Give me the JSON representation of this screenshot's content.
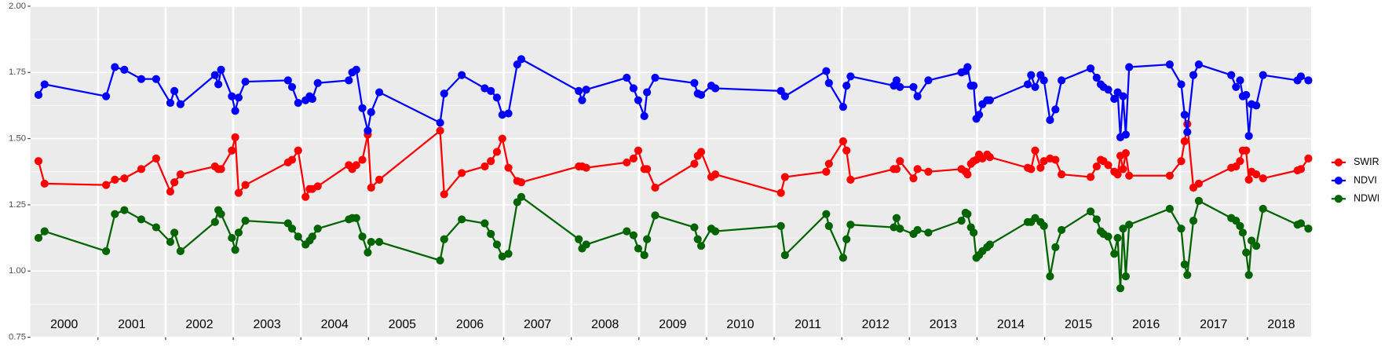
{
  "chart_data": {
    "type": "line",
    "x": [
      2000.12,
      2000.21,
      2001.12,
      2001.25,
      2001.39,
      2001.64,
      2001.86,
      2002.07,
      2002.13,
      2002.22,
      2002.73,
      2002.78,
      2002.82,
      2002.98,
      2003.03,
      2003.08,
      2003.18,
      2003.81,
      2003.87,
      2003.96,
      2004.07,
      2004.13,
      2004.17,
      2004.25,
      2004.71,
      2004.76,
      2004.82,
      2004.91,
      2004.99,
      2005.04,
      2005.16,
      2006.06,
      2006.12,
      2006.38,
      2006.72,
      2006.81,
      2006.9,
      2006.98,
      2007.07,
      2007.2,
      2007.26,
      2008.11,
      2008.16,
      2008.22,
      2008.82,
      2008.92,
      2008.99,
      2009.08,
      2009.12,
      2009.24,
      2009.82,
      2009.87,
      2009.92,
      2010.07,
      2010.13,
      2011.1,
      2011.16,
      2011.77,
      2011.81,
      2012.02,
      2012.07,
      2012.13,
      2012.77,
      2012.81,
      2012.86,
      2013.06,
      2013.12,
      2013.28,
      2013.77,
      2013.83,
      2013.86,
      2013.91,
      2013.95,
      2013.99,
      2014.03,
      2014.08,
      2014.15,
      2014.19,
      2014.75,
      2014.8,
      2014.86,
      2014.94,
      2014.99,
      2015.08,
      2015.16,
      2015.25,
      2015.68,
      2015.77,
      2015.83,
      2015.87,
      2015.94,
      2016.03,
      2016.08,
      2016.12,
      2016.16,
      2016.2,
      2016.25,
      2016.85,
      2017.02,
      2017.07,
      2017.11,
      2017.2,
      2017.28,
      2017.76,
      2017.83,
      2017.89,
      2017.93,
      2017.98,
      2018.02,
      2018.06,
      2018.13,
      2018.23,
      2018.74,
      2018.79,
      2018.9
    ],
    "series": [
      {
        "name": "SWIR",
        "color": "#ff0000",
        "values": [
          1.415,
          1.33,
          1.325,
          1.345,
          1.35,
          1.385,
          1.425,
          1.3,
          1.335,
          1.365,
          1.395,
          1.385,
          1.385,
          1.455,
          1.505,
          1.295,
          1.325,
          1.41,
          1.42,
          1.455,
          1.28,
          1.31,
          1.31,
          1.32,
          1.4,
          1.385,
          1.4,
          1.42,
          1.515,
          1.315,
          1.345,
          1.53,
          1.29,
          1.37,
          1.395,
          1.415,
          1.45,
          1.5,
          1.39,
          1.34,
          1.335,
          1.395,
          1.395,
          1.39,
          1.41,
          1.425,
          1.455,
          1.385,
          1.385,
          1.315,
          1.405,
          1.435,
          1.45,
          1.355,
          1.365,
          1.295,
          1.355,
          1.375,
          1.405,
          1.49,
          1.455,
          1.345,
          1.385,
          1.385,
          1.415,
          1.35,
          1.385,
          1.375,
          1.385,
          1.375,
          1.365,
          1.405,
          1.415,
          1.42,
          1.44,
          1.425,
          1.44,
          1.43,
          1.39,
          1.385,
          1.455,
          1.39,
          1.415,
          1.425,
          1.42,
          1.365,
          1.355,
          1.395,
          1.42,
          1.415,
          1.4,
          1.375,
          1.365,
          1.435,
          1.385,
          1.445,
          1.36,
          1.36,
          1.415,
          1.49,
          1.555,
          1.315,
          1.33,
          1.39,
          1.395,
          1.415,
          1.455,
          1.455,
          1.345,
          1.375,
          1.365,
          1.35,
          1.38,
          1.385,
          1.425
        ]
      },
      {
        "name": "NDVI",
        "color": "#0000ff",
        "values": [
          1.665,
          1.705,
          1.66,
          1.77,
          1.76,
          1.725,
          1.725,
          1.635,
          1.68,
          1.63,
          1.74,
          1.705,
          1.76,
          1.66,
          1.605,
          1.655,
          1.715,
          1.72,
          1.695,
          1.635,
          1.645,
          1.66,
          1.65,
          1.71,
          1.72,
          1.75,
          1.76,
          1.615,
          1.53,
          1.6,
          1.675,
          1.56,
          1.67,
          1.74,
          1.69,
          1.68,
          1.655,
          1.59,
          1.595,
          1.78,
          1.8,
          1.68,
          1.645,
          1.685,
          1.73,
          1.69,
          1.645,
          1.585,
          1.675,
          1.73,
          1.71,
          1.67,
          1.665,
          1.7,
          1.69,
          1.68,
          1.66,
          1.755,
          1.71,
          1.62,
          1.7,
          1.735,
          1.7,
          1.72,
          1.695,
          1.695,
          1.66,
          1.72,
          1.75,
          1.755,
          1.77,
          1.7,
          1.7,
          1.575,
          1.59,
          1.63,
          1.645,
          1.645,
          1.705,
          1.74,
          1.695,
          1.74,
          1.72,
          1.57,
          1.61,
          1.72,
          1.765,
          1.73,
          1.705,
          1.695,
          1.685,
          1.65,
          1.675,
          1.505,
          1.66,
          1.515,
          1.77,
          1.78,
          1.705,
          1.59,
          1.525,
          1.74,
          1.78,
          1.74,
          1.695,
          1.72,
          1.66,
          1.665,
          1.51,
          1.63,
          1.625,
          1.74,
          1.72,
          1.735,
          1.72
        ]
      },
      {
        "name": "NDWI",
        "color": "#006400",
        "values": [
          1.125,
          1.15,
          1.075,
          1.215,
          1.23,
          1.195,
          1.165,
          1.11,
          1.145,
          1.075,
          1.185,
          1.23,
          1.215,
          1.125,
          1.08,
          1.145,
          1.19,
          1.18,
          1.16,
          1.13,
          1.1,
          1.115,
          1.13,
          1.16,
          1.195,
          1.2,
          1.2,
          1.13,
          1.07,
          1.11,
          1.11,
          1.04,
          1.12,
          1.195,
          1.18,
          1.14,
          1.1,
          1.055,
          1.065,
          1.26,
          1.28,
          1.12,
          1.085,
          1.1,
          1.15,
          1.135,
          1.085,
          1.06,
          1.12,
          1.21,
          1.165,
          1.12,
          1.095,
          1.16,
          1.15,
          1.17,
          1.06,
          1.215,
          1.17,
          1.05,
          1.12,
          1.175,
          1.165,
          1.2,
          1.16,
          1.14,
          1.155,
          1.145,
          1.19,
          1.22,
          1.215,
          1.165,
          1.145,
          1.05,
          1.06,
          1.075,
          1.09,
          1.1,
          1.185,
          1.185,
          1.2,
          1.185,
          1.17,
          0.98,
          1.09,
          1.155,
          1.225,
          1.195,
          1.15,
          1.14,
          1.13,
          1.065,
          1.125,
          0.935,
          1.16,
          0.98,
          1.175,
          1.235,
          1.16,
          1.025,
          0.985,
          1.19,
          1.265,
          1.2,
          1.19,
          1.17,
          1.145,
          1.07,
          0.985,
          1.115,
          1.095,
          1.235,
          1.175,
          1.18,
          1.16
        ]
      }
    ],
    "annotations": [
      {
        "text": "2000",
        "x": 2000.5
      },
      {
        "text": "2001",
        "x": 2001.5
      },
      {
        "text": "2002",
        "x": 2002.5
      },
      {
        "text": "2003",
        "x": 2003.5
      },
      {
        "text": "2004",
        "x": 2004.5
      },
      {
        "text": "2005",
        "x": 2005.5
      },
      {
        "text": "2006",
        "x": 2006.5
      },
      {
        "text": "2007",
        "x": 2007.5
      },
      {
        "text": "2008",
        "x": 2008.5
      },
      {
        "text": "2009",
        "x": 2009.5
      },
      {
        "text": "2010",
        "x": 2010.5
      },
      {
        "text": "2011",
        "x": 2011.5
      },
      {
        "text": "2012",
        "x": 2012.5
      },
      {
        "text": "2013",
        "x": 2013.5
      },
      {
        "text": "2014",
        "x": 2014.5
      },
      {
        "text": "2015",
        "x": 2015.5
      },
      {
        "text": "2016",
        "x": 2016.5
      },
      {
        "text": "2017",
        "x": 2017.5
      },
      {
        "text": "2018",
        "x": 2018.5
      }
    ],
    "xlim": [
      2000,
      2018.94
    ],
    "xticks": [
      2001,
      2002,
      2003,
      2004,
      2005,
      2006,
      2007,
      2008,
      2009,
      2010,
      2011,
      2012,
      2013,
      2014,
      2015,
      2016,
      2017,
      2018
    ],
    "ylim": [
      0.75,
      2.0
    ],
    "yticks": [
      {
        "value": 0.75,
        "label": "0.75"
      },
      {
        "value": 1.0,
        "label": "1.00"
      },
      {
        "value": 1.25,
        "label": "1.25"
      },
      {
        "value": 1.5,
        "label": "1.50"
      },
      {
        "value": 1.75,
        "label": "1.75"
      },
      {
        "value": 2.0,
        "label": "2.00"
      }
    ],
    "grid": true,
    "legend": "right"
  }
}
